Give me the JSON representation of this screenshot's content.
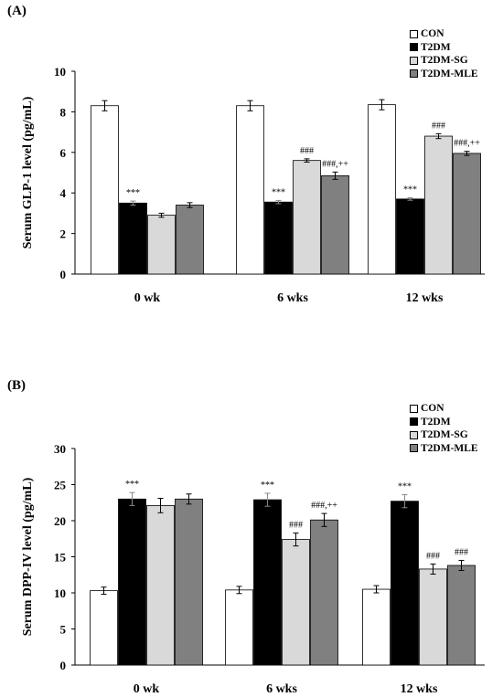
{
  "colors": {
    "CON": "#ffffff",
    "T2DM": "#000000",
    "T2DM-SG": "#d9d9d9",
    "T2DM-MLE": "#808080"
  },
  "chart_data": [
    {
      "panel_label": "(A)",
      "type": "bar",
      "ylabel": "Serum GLP-1 level (pg/mL)",
      "xlabel": "",
      "ylim": [
        0,
        10
      ],
      "yticks": [
        "0",
        "2",
        "4",
        "6",
        "8",
        "10"
      ],
      "categories": [
        "0 wk",
        "6 wks",
        "12 wks"
      ],
      "legend": [
        "CON",
        "T2DM",
        "T2DM-SG",
        "T2DM-MLE"
      ],
      "legend_position": "top-right",
      "grid": false,
      "series": [
        {
          "name": "CON",
          "values": [
            8.3,
            8.3,
            8.35
          ],
          "errors": [
            0.25,
            0.25,
            0.25
          ],
          "annotations": [
            "",
            "",
            ""
          ]
        },
        {
          "name": "T2DM",
          "values": [
            3.5,
            3.55,
            3.7
          ],
          "errors": [
            0.1,
            0.08,
            0.06
          ],
          "annotations": [
            "***",
            "***",
            "***"
          ]
        },
        {
          "name": "T2DM-SG",
          "values": [
            2.9,
            5.6,
            6.8
          ],
          "errors": [
            0.1,
            0.08,
            0.12
          ],
          "annotations": [
            "",
            "###",
            "###"
          ]
        },
        {
          "name": "T2DM-MLE",
          "values": [
            3.4,
            4.85,
            5.95
          ],
          "errors": [
            0.12,
            0.18,
            0.1
          ],
          "annotations": [
            "",
            "###,++",
            "###,++"
          ]
        }
      ]
    },
    {
      "panel_label": "(B)",
      "type": "bar",
      "ylabel": "Serum DPP-IV level (pg/mL)",
      "xlabel": "",
      "ylim": [
        0,
        30
      ],
      "yticks": [
        "0",
        "5",
        "10",
        "15",
        "20",
        "25",
        "30"
      ],
      "categories": [
        "0 wk",
        "6 wks",
        "12 wks"
      ],
      "legend": [
        "CON",
        "T2DM",
        "T2DM-SG",
        "T2DM-MLE"
      ],
      "legend_position": "top-right",
      "grid": false,
      "series": [
        {
          "name": "CON",
          "values": [
            10.3,
            10.4,
            10.5
          ],
          "errors": [
            0.5,
            0.5,
            0.5
          ],
          "annotations": [
            "",
            "",
            ""
          ]
        },
        {
          "name": "T2DM",
          "values": [
            23.0,
            22.9,
            22.7
          ],
          "errors": [
            0.9,
            0.9,
            0.9
          ],
          "annotations": [
            "***",
            "***",
            "***"
          ]
        },
        {
          "name": "T2DM-SG",
          "values": [
            22.1,
            17.4,
            13.3
          ],
          "errors": [
            1.0,
            0.9,
            0.7
          ],
          "annotations": [
            "",
            "###",
            "###"
          ]
        },
        {
          "name": "T2DM-MLE",
          "values": [
            23.0,
            20.1,
            13.8
          ],
          "errors": [
            0.7,
            0.9,
            0.7
          ],
          "annotations": [
            "",
            "###,++",
            "###"
          ]
        }
      ]
    }
  ]
}
